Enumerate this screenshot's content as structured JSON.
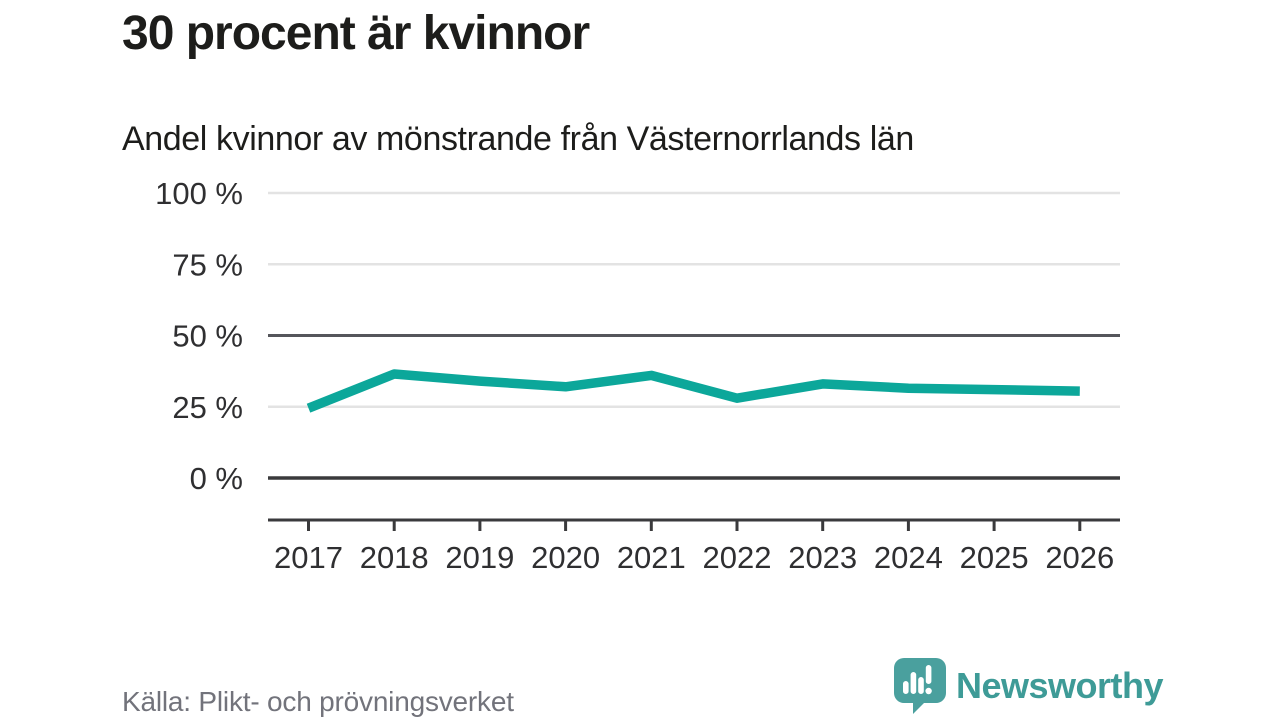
{
  "header": {
    "title": "30 procent är kvinnor",
    "subtitle": "Andel kvinnor av mönstrande från Västernorrlands län"
  },
  "chart_data": {
    "type": "line",
    "title": "30 procent är kvinnor",
    "subtitle": "Andel kvinnor av mönstrande från Västernorrlands län",
    "categories": [
      "2017",
      "2018",
      "2019",
      "2020",
      "2021",
      "2022",
      "2023",
      "2024",
      "2025",
      "2026"
    ],
    "series": [
      {
        "name": "Andel kvinnor av mönstrande",
        "color": "#0ca79a",
        "values": [
          24.5,
          36.5,
          34,
          32,
          36,
          28,
          33,
          31.5,
          31,
          30.5
        ]
      }
    ],
    "unit": "%",
    "xlabel": "",
    "ylabel": "",
    "ylim": [
      0,
      100
    ],
    "yticks": [
      0,
      25,
      50,
      75,
      100
    ],
    "ytick_labels": [
      "0 %",
      "25 %",
      "50 %",
      "75 %",
      "100 %"
    ],
    "grid": "horizontal",
    "legend": "none",
    "emphasized_gridlines": [
      0,
      50
    ]
  },
  "footer": {
    "source": "Källa: Plikt- och prövningsverket",
    "brand": "Newsworthy"
  },
  "icons": {
    "logo_mark": "newsworthy-speech-bubble-bar-chart-icon"
  },
  "colors": {
    "line": "#0ca79a",
    "grid_light": "#e3e3e3",
    "grid_mid": "#55565b",
    "axis_dark": "#3a3a3c",
    "title_text": "#1d1d1b",
    "tick_text": "#2f2f31",
    "source_text": "#72737b",
    "brand_teal": "#3e9b97",
    "logo_bubble": "#4aa09e",
    "background": "#ffffff"
  }
}
